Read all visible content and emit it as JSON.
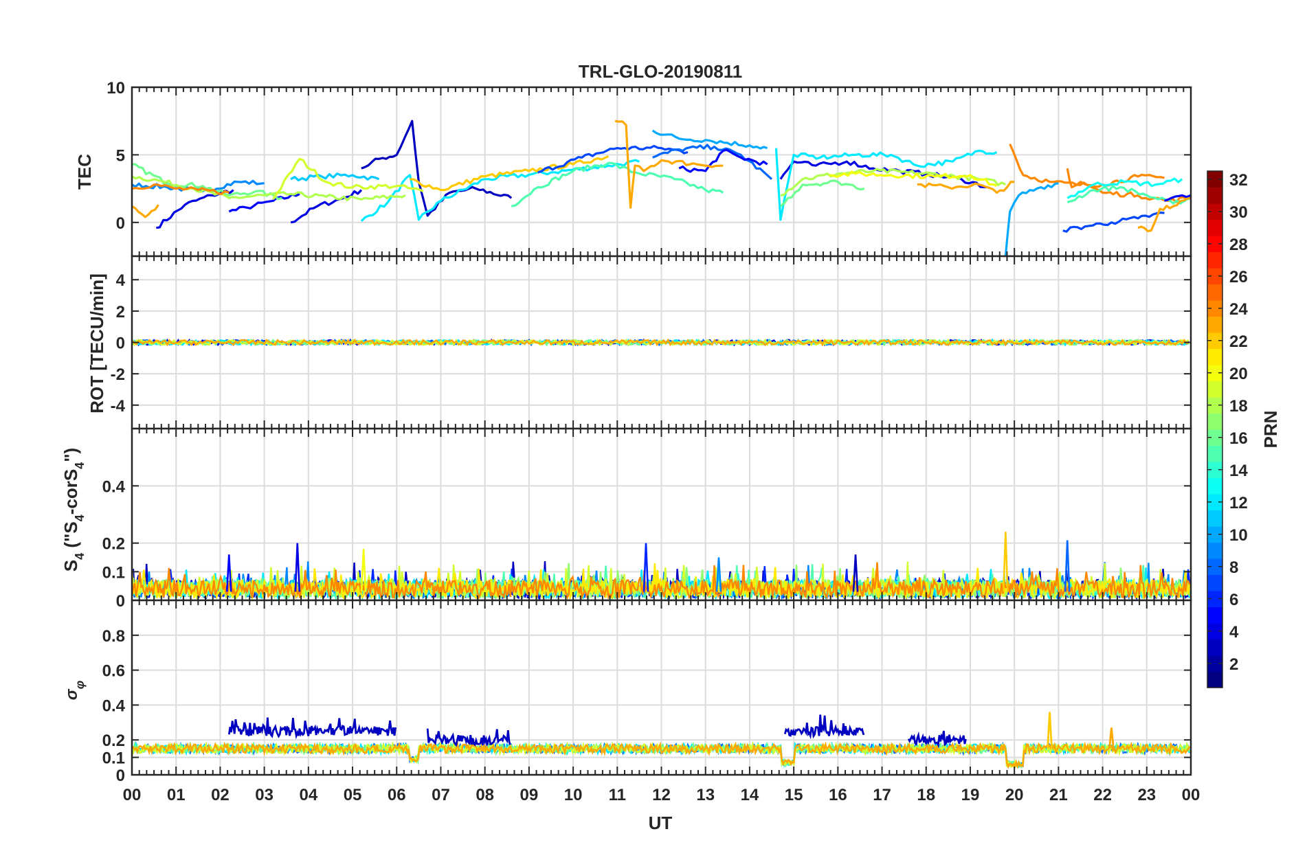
{
  "figure": {
    "title": "TRL-GLO-20190811",
    "xlabel": "UT",
    "colorbar": {
      "label": "PRN",
      "ticks": [
        "2",
        "4",
        "6",
        "8",
        "10",
        "12",
        "14",
        "16",
        "18",
        "20",
        "22",
        "24",
        "26",
        "28",
        "30",
        "32"
      ],
      "range": [
        1,
        32
      ],
      "colormap": "jet",
      "levels": 32
    },
    "x_ticks": [
      "00",
      "01",
      "02",
      "03",
      "04",
      "05",
      "06",
      "07",
      "08",
      "09",
      "10",
      "11",
      "12",
      "13",
      "14",
      "15",
      "16",
      "17",
      "18",
      "19",
      "20",
      "21",
      "22",
      "23",
      "00"
    ]
  },
  "chart_data": [
    {
      "type": "line",
      "panel": "TEC",
      "ylabel": "TEC",
      "ylim": [
        -2.5,
        10
      ],
      "yticks": [
        "0",
        "5",
        "10"
      ],
      "xlim": [
        0,
        24
      ],
      "grid": true,
      "series": [
        {
          "prn": 4,
          "x": [
            0.55,
            1.2,
            1.8,
            2.3
          ],
          "values": [
            -0.4,
            1.3,
            2.0,
            2.4
          ]
        },
        {
          "prn": 5,
          "x": [
            2.2,
            2.6,
            3.2,
            3.8
          ],
          "values": [
            0.8,
            1.1,
            1.6,
            2.1
          ]
        },
        {
          "prn": 4,
          "x": [
            3.6,
            4.2,
            4.8,
            5.2
          ],
          "values": [
            0.0,
            1.2,
            1.8,
            2.4
          ]
        },
        {
          "prn": 3,
          "x": [
            5.2,
            5.6,
            6.0,
            6.2,
            6.35,
            6.5,
            6.7,
            7.2,
            7.8,
            8.6
          ],
          "values": [
            4.0,
            4.7,
            5.0,
            6.4,
            7.5,
            3.0,
            0.5,
            2.2,
            2.5,
            1.8
          ]
        },
        {
          "prn": 9,
          "x": [
            0.0,
            0.8,
            1.6,
            2.4,
            3.0
          ],
          "values": [
            2.8,
            2.6,
            2.3,
            3.0,
            2.9
          ]
        },
        {
          "prn": 11,
          "x": [
            3.6,
            4.3,
            5.0,
            5.6
          ],
          "values": [
            3.2,
            3.4,
            3.5,
            3.2
          ]
        },
        {
          "prn": 12,
          "x": [
            5.2,
            5.8,
            6.3,
            6.5,
            7.0,
            8.0,
            9.5,
            10.8,
            11.5
          ],
          "values": [
            0.1,
            1.5,
            3.5,
            0.2,
            1.6,
            3.2,
            3.7,
            4.2,
            4.5
          ]
        },
        {
          "prn": 16,
          "x": [
            0.0,
            0.8,
            1.6,
            2.2,
            2.8,
            3.4
          ],
          "values": [
            4.3,
            2.9,
            2.7,
            2.0,
            2.3,
            1.8
          ]
        },
        {
          "prn": 18,
          "x": [
            0.0,
            0.6,
            1.4,
            2.2,
            3.0,
            3.6,
            4.4,
            5.2,
            6.2
          ],
          "values": [
            3.4,
            3.1,
            2.5,
            1.8,
            2.0,
            2.1,
            1.9,
            1.7,
            2.0
          ]
        },
        {
          "prn": 19,
          "x": [
            3.2,
            3.8,
            4.4,
            5.0,
            6.0,
            6.6
          ],
          "values": [
            1.7,
            4.7,
            3.0,
            2.6,
            2.7,
            2.3
          ]
        },
        {
          "prn": 22,
          "x": [
            6.3,
            7.0,
            8.0,
            9.0,
            10.0,
            10.8
          ],
          "values": [
            3.2,
            2.4,
            3.4,
            3.8,
            4.3,
            4.9
          ]
        },
        {
          "prn": 24,
          "x": [
            0.0,
            0.5,
            1.0,
            1.5,
            2.2
          ],
          "values": [
            2.5,
            2.8,
            2.5,
            2.4,
            2.2
          ]
        },
        {
          "prn": 23,
          "x": [
            0.0,
            0.3,
            0.6
          ],
          "values": [
            1.2,
            0.4,
            1.3
          ]
        },
        {
          "prn": 15,
          "x": [
            8.6,
            9.2,
            10.0,
            10.8,
            11.4,
            12.3,
            13.0,
            13.4
          ],
          "values": [
            1.2,
            2.6,
            3.8,
            4.4,
            3.7,
            3.2,
            2.4,
            2.2
          ]
        },
        {
          "prn": 7,
          "x": [
            9.2,
            10.2,
            11.0,
            12.0,
            12.6
          ],
          "values": [
            3.7,
            4.8,
            5.5,
            5.5,
            5.2
          ]
        },
        {
          "prn": 10,
          "x": [
            11.8,
            12.4,
            13.0,
            14.0,
            14.4
          ],
          "values": [
            6.8,
            6.2,
            6.1,
            5.7,
            5.5
          ]
        },
        {
          "prn": 8,
          "x": [
            11.8,
            12.4,
            13.2,
            13.8,
            14.5
          ],
          "values": [
            4.8,
            5.4,
            5.6,
            5.0,
            3.2
          ]
        },
        {
          "prn": 5,
          "x": [
            12.4,
            13.0,
            13.4,
            13.8,
            14.4
          ],
          "values": [
            4.0,
            3.8,
            5.3,
            4.8,
            4.3
          ]
        },
        {
          "prn": 23,
          "x": [
            10.95,
            11.2,
            11.3,
            11.4,
            11.6,
            12.0,
            12.8,
            13.4
          ],
          "values": [
            7.5,
            7.2,
            1.1,
            4.2,
            3.8,
            4.6,
            4.3,
            4.2
          ]
        },
        {
          "prn": 4,
          "x": [
            14.7,
            15.0,
            15.5,
            16.2,
            16.8,
            17.4,
            18.0,
            18.8,
            19.4
          ],
          "values": [
            3.2,
            4.5,
            4.2,
            4.5,
            4.0,
            3.8,
            3.6,
            3.2,
            2.6
          ]
        },
        {
          "prn": 12,
          "x": [
            14.6,
            14.7,
            15.0,
            15.6,
            16.4,
            17.2,
            17.8,
            18.6,
            19.2,
            19.6
          ],
          "values": [
            5.5,
            0.2,
            5.0,
            4.8,
            5.0,
            5.0,
            4.2,
            4.5,
            5.3,
            5.2
          ]
        },
        {
          "prn": 18,
          "x": [
            14.7,
            15.2,
            16.0,
            16.8,
            17.6,
            18.4,
            19.2,
            19.8
          ],
          "values": [
            2.0,
            3.2,
            3.6,
            3.8,
            3.7,
            3.5,
            3.2,
            2.8
          ]
        },
        {
          "prn": 16,
          "x": [
            14.7,
            15.2,
            16.0,
            16.6
          ],
          "values": [
            1.2,
            2.8,
            3.0,
            2.5
          ]
        },
        {
          "prn": 20,
          "x": [
            15.8,
            16.4,
            17.2,
            18.2,
            19.0,
            19.6
          ],
          "values": [
            3.5,
            3.6,
            3.5,
            3.4,
            3.5,
            2.7
          ]
        },
        {
          "prn": 23,
          "x": [
            17.8,
            18.5,
            19.2,
            19.6,
            20.0
          ],
          "values": [
            2.8,
            2.6,
            2.8,
            2.2,
            3.0
          ]
        },
        {
          "prn": 10,
          "x": [
            19.8,
            19.9,
            20.1,
            20.6,
            21.0
          ],
          "values": [
            -2.5,
            0.8,
            2.0,
            2.6,
            2.9
          ]
        },
        {
          "prn": 24,
          "x": [
            19.9,
            20.2,
            20.8,
            21.4,
            22.0,
            22.8,
            23.4
          ],
          "values": [
            5.8,
            3.5,
            3.0,
            2.8,
            2.8,
            3.4,
            3.3
          ]
        },
        {
          "prn": 24,
          "x": [
            21.2,
            21.3,
            21.5,
            22.0,
            22.8,
            23.5,
            24.0
          ],
          "values": [
            4.0,
            2.6,
            3.0,
            2.2,
            2.0,
            1.6,
            1.8
          ]
        },
        {
          "prn": 15,
          "x": [
            21.2,
            21.8,
            22.4,
            23.0,
            23.6,
            24.0
          ],
          "values": [
            1.5,
            2.4,
            2.6,
            2.0,
            1.4,
            1.8
          ]
        },
        {
          "prn": 13,
          "x": [
            21.2,
            21.8,
            22.5,
            23.2,
            23.8
          ],
          "values": [
            1.8,
            2.8,
            3.0,
            2.8,
            3.2
          ]
        },
        {
          "prn": 7,
          "x": [
            21.1,
            21.6,
            22.2,
            22.8,
            23.4
          ],
          "values": [
            -0.6,
            -0.3,
            0.0,
            0.3,
            0.7
          ]
        },
        {
          "prn": 5,
          "x": [
            23.4,
            23.8,
            24.0
          ],
          "values": [
            1.6,
            2.0,
            2.0
          ]
        },
        {
          "prn": 23,
          "x": [
            22.8,
            23.1,
            23.3,
            23.6,
            24.0
          ],
          "values": [
            -0.4,
            -0.6,
            1.0,
            1.2,
            1.8
          ]
        }
      ]
    },
    {
      "type": "line",
      "panel": "ROT",
      "ylabel": "ROT [TECU/min]",
      "ylim": [
        -5.5,
        5.5
      ],
      "yticks": [
        "-4",
        "-2",
        "0",
        "2",
        "4"
      ],
      "xlim": [
        0,
        24
      ],
      "grid": true,
      "baseline": 0,
      "typical_amplitude": 0.15
    },
    {
      "type": "line",
      "panel": "S4",
      "ylabel": "S4 (\"S4-corS4\")",
      "ylim": [
        0,
        0.6
      ],
      "yticks": [
        "0",
        "0.1",
        "0.2",
        "0.4"
      ],
      "xlim": [
        0,
        24
      ],
      "grid": true,
      "typical_level": 0.04,
      "peaks": [
        {
          "x": 3.75,
          "value": 0.2,
          "prn": 4
        },
        {
          "x": 5.25,
          "value": 0.18,
          "prn": 20
        },
        {
          "x": 11.65,
          "value": 0.2,
          "prn": 6
        },
        {
          "x": 19.8,
          "value": 0.24,
          "prn": 22
        },
        {
          "x": 21.2,
          "value": 0.21,
          "prn": 8
        },
        {
          "x": 16.4,
          "value": 0.16,
          "prn": 3
        },
        {
          "x": 2.2,
          "value": 0.16,
          "prn": 5
        },
        {
          "x": 13.3,
          "value": 0.15,
          "prn": 9
        }
      ]
    },
    {
      "type": "line",
      "panel": "sigma_phi",
      "ylabel": "σφ",
      "ylim": [
        0,
        1
      ],
      "yticks": [
        "0",
        "0.1",
        "0.2",
        "0.4",
        "0.6",
        "0.8"
      ],
      "xlim": [
        0,
        24
      ],
      "grid": true,
      "typical_level": 0.15,
      "elevated_segments": [
        {
          "prn": 3,
          "x": [
            2.2,
            6.0
          ],
          "level": 0.25,
          "max": 0.35
        },
        {
          "prn": 3,
          "x": [
            6.7,
            8.6
          ],
          "level": 0.2,
          "max": 0.25
        },
        {
          "prn": 3,
          "x": [
            14.8,
            16.6
          ],
          "level": 0.25,
          "max": 0.33
        },
        {
          "prn": 3,
          "x": [
            17.6,
            18.9
          ],
          "level": 0.2,
          "max": 0.26
        }
      ],
      "dips": [
        {
          "x": [
            6.3,
            6.5
          ],
          "value": 0.09
        },
        {
          "x": [
            14.7,
            15.0
          ],
          "value": 0.07
        },
        {
          "x": [
            19.8,
            20.2
          ],
          "value": 0.06
        }
      ],
      "peaks": [
        {
          "x": 20.8,
          "value": 0.36,
          "prn": 22
        },
        {
          "x": 22.2,
          "value": 0.27,
          "prn": 23
        }
      ]
    }
  ]
}
